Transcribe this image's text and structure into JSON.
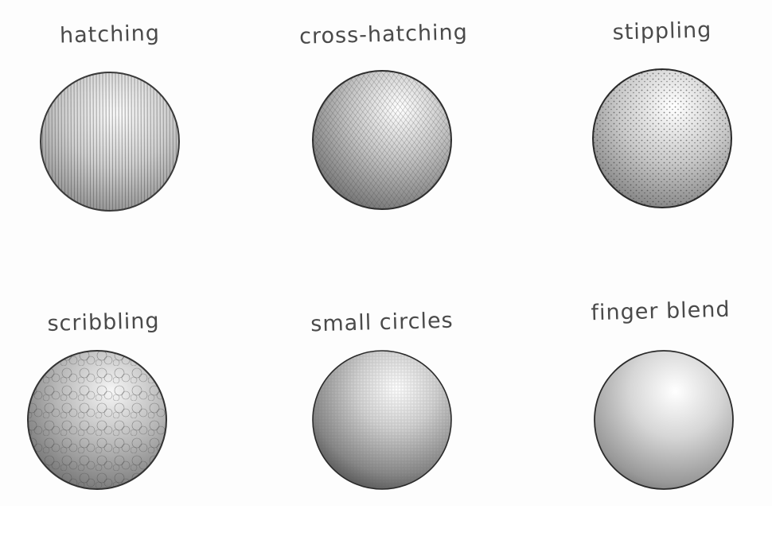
{
  "samples": [
    {
      "id": "hatching",
      "label": "hatching"
    },
    {
      "id": "cross-hatching",
      "label": "cross-hatching"
    },
    {
      "id": "stippling",
      "label": "stippling"
    },
    {
      "id": "scribbling",
      "label": "scribbling"
    },
    {
      "id": "small-circles",
      "label": "small circles"
    },
    {
      "id": "finger-blend",
      "label": "finger blend"
    }
  ],
  "colors": {
    "paper": "#fdfdfd",
    "graphite": "#3a3a3a",
    "label": "#4a4a4a"
  }
}
